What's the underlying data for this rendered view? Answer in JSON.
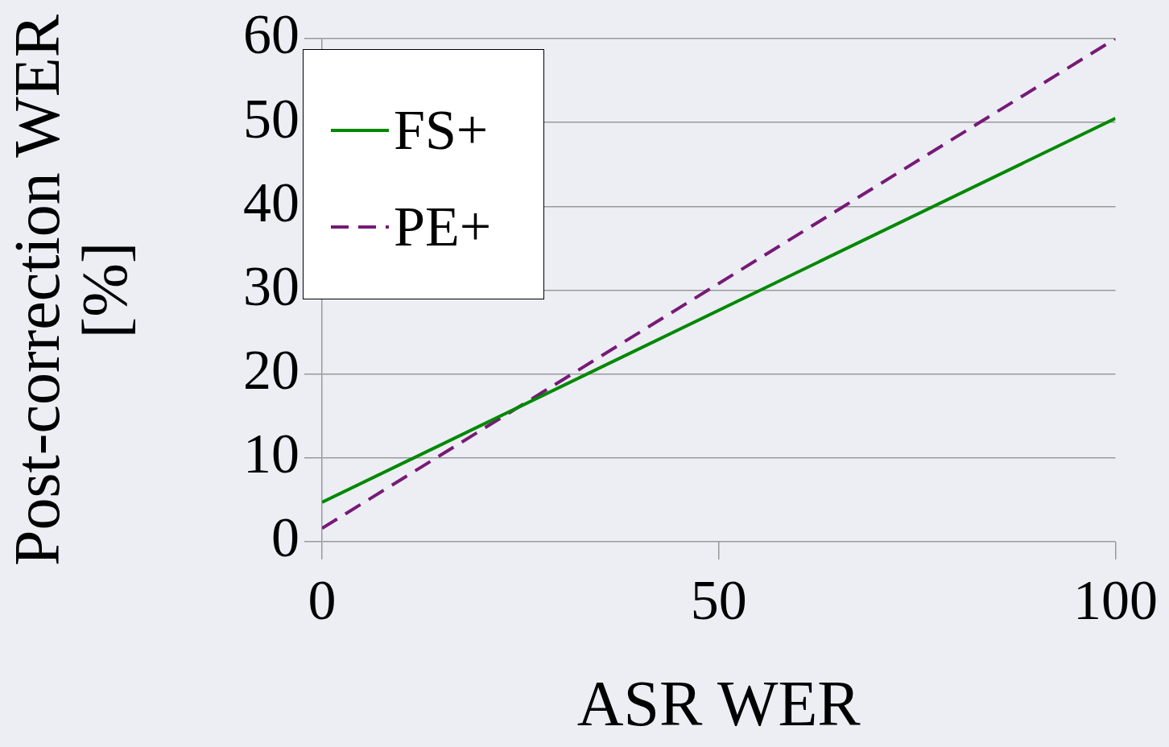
{
  "chart_data": {
    "type": "line",
    "xlabel": "ASR WER",
    "ylabel": "Post-correction WER [%]",
    "x": [
      0,
      100
    ],
    "series": [
      {
        "name": "FS+",
        "color": "#008800",
        "values": [
          4.7,
          50.5
        ],
        "line_style": "solid"
      },
      {
        "name": "PE+",
        "color": "#771a77",
        "values": [
          1.6,
          60
        ],
        "line_style": "dashed"
      }
    ],
    "xlim": [
      0,
      100
    ],
    "xticks": [
      0,
      50,
      100
    ],
    "ylim": [
      0,
      60
    ],
    "yticks": [
      0,
      10,
      20,
      30,
      40,
      50,
      60
    ],
    "grid": "y",
    "legend": "top left",
    "marker": "none"
  }
}
